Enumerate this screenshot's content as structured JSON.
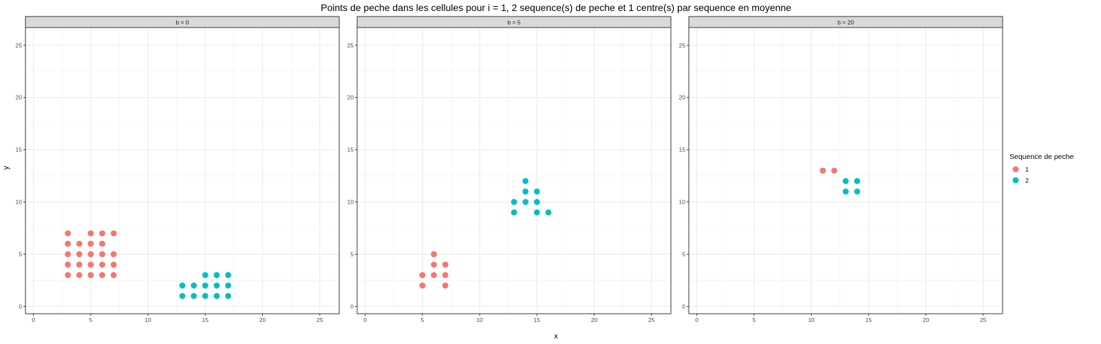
{
  "chart_data": {
    "type": "scatter",
    "title": "Points de peche dans les cellules pour i = 1, 2 sequence(s) de peche et 1 centre(s) par sequence en moyenne",
    "xlabel": "x",
    "ylabel": "y",
    "xlim": [
      -0.7,
      26.7
    ],
    "ylim": [
      -0.7,
      26.7
    ],
    "xticks": [
      0,
      5,
      10,
      15,
      20,
      25
    ],
    "yticks": [
      0,
      5,
      10,
      15,
      20,
      25
    ],
    "grid": true,
    "legend": {
      "title": "Sequence de peche",
      "position": "right",
      "entries": [
        {
          "label": "1",
          "color": "#F8766D"
        },
        {
          "label": "2",
          "color": "#00BFC4"
        }
      ]
    },
    "panels": [
      {
        "label": "b = 0",
        "series": [
          {
            "name": "1",
            "color": "#F8766D",
            "points": [
              [
                3,
                3
              ],
              [
                3,
                4
              ],
              [
                3,
                5
              ],
              [
                3,
                6
              ],
              [
                3,
                7
              ],
              [
                4,
                3
              ],
              [
                4,
                4
              ],
              [
                4,
                5
              ],
              [
                4,
                6
              ],
              [
                5,
                3
              ],
              [
                5,
                4
              ],
              [
                5,
                5
              ],
              [
                5,
                6
              ],
              [
                5,
                7
              ],
              [
                6,
                3
              ],
              [
                6,
                4
              ],
              [
                6,
                5
              ],
              [
                6,
                6
              ],
              [
                6,
                7
              ],
              [
                7,
                3
              ],
              [
                7,
                4
              ],
              [
                7,
                5
              ],
              [
                7,
                7
              ]
            ]
          },
          {
            "name": "2",
            "color": "#00BFC4",
            "points": [
              [
                13,
                1
              ],
              [
                13,
                2
              ],
              [
                14,
                1
              ],
              [
                14,
                2
              ],
              [
                15,
                1
              ],
              [
                15,
                2
              ],
              [
                15,
                3
              ],
              [
                16,
                1
              ],
              [
                16,
                2
              ],
              [
                16,
                3
              ],
              [
                17,
                1
              ],
              [
                17,
                2
              ],
              [
                17,
                3
              ]
            ]
          }
        ]
      },
      {
        "label": "b = 5",
        "series": [
          {
            "name": "1",
            "color": "#F8766D",
            "points": [
              [
                5,
                2
              ],
              [
                5,
                3
              ],
              [
                6,
                3
              ],
              [
                6,
                4
              ],
              [
                6,
                5
              ],
              [
                7,
                2
              ],
              [
                7,
                3
              ],
              [
                7,
                4
              ]
            ]
          },
          {
            "name": "2",
            "color": "#00BFC4",
            "points": [
              [
                13,
                9
              ],
              [
                13,
                10
              ],
              [
                14,
                10
              ],
              [
                14,
                11
              ],
              [
                14,
                12
              ],
              [
                15,
                9
              ],
              [
                15,
                10
              ],
              [
                15,
                11
              ],
              [
                16,
                9
              ]
            ]
          }
        ]
      },
      {
        "label": "b = 20",
        "series": [
          {
            "name": "1",
            "color": "#F8766D",
            "points": [
              [
                11,
                13
              ],
              [
                12,
                13
              ]
            ]
          },
          {
            "name": "2",
            "color": "#00BFC4",
            "points": [
              [
                13,
                11
              ],
              [
                13,
                12
              ],
              [
                14,
                11
              ],
              [
                14,
                12
              ]
            ]
          }
        ]
      }
    ]
  }
}
